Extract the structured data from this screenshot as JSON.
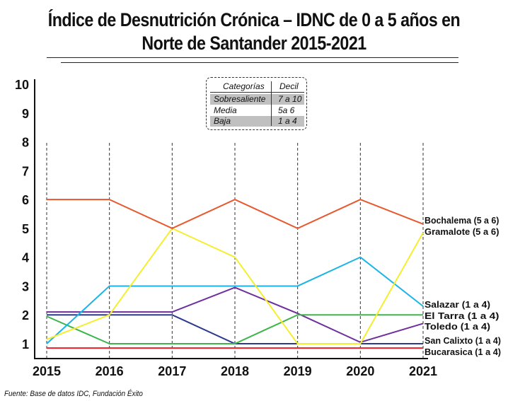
{
  "title_line1": "Índice de Desnutrición Crónica – IDNC de 0 a 5 años en",
  "title_line2": "Norte de Santander 2015-2021",
  "legend": {
    "header": {
      "col1": "Categorías",
      "col2": "Decil"
    },
    "rows": [
      {
        "category": "Sobresaliente",
        "decil": "7 a 10",
        "shaded": true
      },
      {
        "category": "Media",
        "decil": "5a 6",
        "shaded": false
      },
      {
        "category": "Baja",
        "decil": "1 a 4",
        "shaded": true
      }
    ]
  },
  "source": "Fuente: Base de datos IDC, Fundación Éxito",
  "chart_data": {
    "type": "line",
    "title": "Índice de Desnutrición Crónica – IDNC de 0 a 5 años en Norte de Santander 2015-2021",
    "xlabel": "",
    "ylabel": "",
    "x": [
      2015,
      2016,
      2017,
      2018,
      2019,
      2020,
      2021
    ],
    "x_tick_labels": [
      "2015",
      "2016",
      "2017",
      "2018",
      "2019",
      "2020",
      "2021"
    ],
    "y_tick_labels": [
      "1",
      "2",
      "3",
      "4",
      "5",
      "6",
      "7",
      "8",
      "9",
      "10"
    ],
    "ylim": [
      1,
      10
    ],
    "vertical_dashed_gridlines": true,
    "legend_placement": "top-center",
    "series": [
      {
        "name": "Bochalema (5 a 6)",
        "color": "#e8582e",
        "values": [
          6,
          6,
          5,
          6,
          5,
          6,
          5.15
        ]
      },
      {
        "name": "Gramalote (5 a 6)",
        "color": "#f5ee2e",
        "values": [
          1.15,
          2,
          5,
          4,
          1,
          1,
          4.85
        ]
      },
      {
        "name": "Salazar (1 a 4)",
        "color": "#1ab4e6",
        "values": [
          1,
          3,
          3,
          3,
          3,
          4,
          2.3
        ]
      },
      {
        "name": "El Tarra  (1 a 4)",
        "color": "#3cb54a",
        "values": [
          1.95,
          1,
          1,
          1,
          2,
          2,
          2
        ]
      },
      {
        "name": "Toledo  (1 a 4)",
        "color": "#6e2f9e",
        "values": [
          2.1,
          2.1,
          2.1,
          2.95,
          2.05,
          1.05,
          1.7
        ]
      },
      {
        "name": "San Calixto (1 a 4)",
        "color": "#2b3a8f",
        "values": [
          2,
          2,
          2,
          1,
          1,
          1,
          1
        ]
      },
      {
        "name": "Bucarasica (1 a 4)",
        "color": "#e8202a",
        "values": [
          0.85,
          0.85,
          0.85,
          0.85,
          0.85,
          0.85,
          0.85
        ]
      }
    ]
  }
}
